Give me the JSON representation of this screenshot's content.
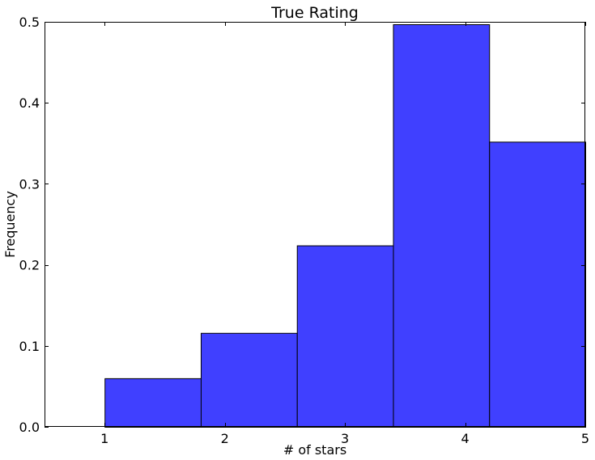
{
  "chart_data": {
    "type": "bar",
    "title": "True Rating",
    "xlabel": "# of stars",
    "ylabel": "Frequency",
    "xlim": [
      0.5,
      5
    ],
    "ylim": [
      0,
      0.5
    ],
    "xticks": [
      1,
      2,
      3,
      4,
      5
    ],
    "xtick_labels": [
      "1",
      "2",
      "3",
      "4",
      "5"
    ],
    "yticks": [
      0,
      0.1,
      0.2,
      0.3,
      0.4,
      0.5
    ],
    "ytick_labels": [
      "0.0",
      "0.1",
      "0.2",
      "0.3",
      "0.4",
      "0.5"
    ],
    "bins": [
      {
        "x0": 1.0,
        "x1": 1.8,
        "value": 0.06
      },
      {
        "x0": 1.8,
        "x1": 2.6,
        "value": 0.116
      },
      {
        "x0": 2.6,
        "x1": 3.4,
        "value": 0.224
      },
      {
        "x0": 3.4,
        "x1": 4.2,
        "value": 0.497
      },
      {
        "x0": 4.2,
        "x1": 5.0,
        "value": 0.352
      }
    ],
    "grid": false,
    "colors": {
      "bar_fill": "#4040ff",
      "bar_edge": "#000000"
    }
  }
}
